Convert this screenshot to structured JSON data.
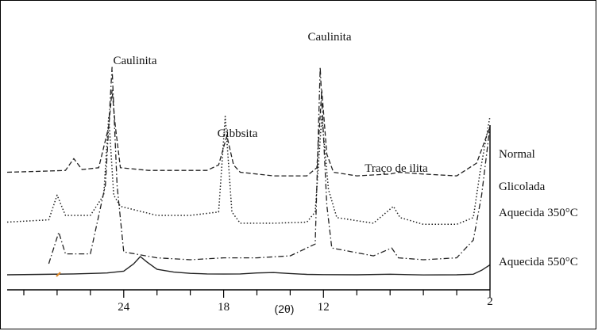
{
  "chart_data": {
    "type": "line",
    "xlabel": "(2θ)",
    "x_reversed": true,
    "xlim": [
      31,
      2
    ],
    "x_ticks": [
      24,
      18,
      12,
      2
    ],
    "x_tick_labels": [
      "24",
      "18",
      "12",
      "2"
    ],
    "series": [
      {
        "name": "Normal",
        "line_style": "dashed",
        "points": [
          [
            31,
            0.1
          ],
          [
            29,
            0.11
          ],
          [
            27.5,
            0.12
          ],
          [
            27,
            0.25
          ],
          [
            26.5,
            0.13
          ],
          [
            25.5,
            0.15
          ],
          [
            24.9,
            0.6
          ],
          [
            24.7,
            1.0
          ],
          [
            24.5,
            0.6
          ],
          [
            24.2,
            0.15
          ],
          [
            22.5,
            0.12
          ],
          [
            21,
            0.12
          ],
          [
            19,
            0.12
          ],
          [
            18.3,
            0.18
          ],
          [
            17.8,
            0.5
          ],
          [
            17.4,
            0.18
          ],
          [
            17,
            0.1
          ],
          [
            15,
            0.06
          ],
          [
            13,
            0.06
          ],
          [
            12.4,
            0.15
          ],
          [
            12.1,
            1.0
          ],
          [
            11.8,
            0.3
          ],
          [
            11.4,
            0.1
          ],
          [
            10,
            0.06
          ],
          [
            8,
            0.08
          ],
          [
            7.5,
            0.1
          ],
          [
            6,
            0.08
          ],
          [
            4,
            0.06
          ],
          [
            2.8,
            0.2
          ],
          [
            2,
            0.6
          ]
        ]
      },
      {
        "name": "Glicolada",
        "line_style": "dotted",
        "points": [
          [
            31,
            0.06
          ],
          [
            28.5,
            0.08
          ],
          [
            28,
            0.3
          ],
          [
            27.5,
            0.12
          ],
          [
            26,
            0.12
          ],
          [
            25.2,
            0.3
          ],
          [
            24.9,
            1.0
          ],
          [
            24.6,
            0.3
          ],
          [
            24.2,
            0.2
          ],
          [
            22,
            0.12
          ],
          [
            20,
            0.12
          ],
          [
            18.3,
            0.15
          ],
          [
            17.9,
            1.0
          ],
          [
            17.5,
            0.15
          ],
          [
            17,
            0.05
          ],
          [
            15,
            0.05
          ],
          [
            13,
            0.06
          ],
          [
            12.5,
            0.15
          ],
          [
            12.1,
            1.0
          ],
          [
            11.7,
            0.35
          ],
          [
            11.2,
            0.1
          ],
          [
            9,
            0.05
          ],
          [
            7.8,
            0.2
          ],
          [
            7.4,
            0.1
          ],
          [
            6,
            0.04
          ],
          [
            4,
            0.04
          ],
          [
            3,
            0.1
          ],
          [
            2.6,
            0.5
          ],
          [
            2,
            1.0
          ]
        ]
      },
      {
        "name": "Aquecida 350°C",
        "line_style": "dashdot",
        "points": [
          [
            28.5,
            0.0
          ],
          [
            27.9,
            0.16
          ],
          [
            27.5,
            0.05
          ],
          [
            26,
            0.05
          ],
          [
            25.1,
            0.4
          ],
          [
            24.7,
            1.0
          ],
          [
            24.4,
            0.4
          ],
          [
            24,
            0.06
          ],
          [
            22,
            0.03
          ],
          [
            20,
            0.02
          ],
          [
            18,
            0.03
          ],
          [
            16,
            0.03
          ],
          [
            14,
            0.04
          ],
          [
            12.5,
            0.1
          ],
          [
            12.2,
            1.0
          ],
          [
            11.8,
            0.3
          ],
          [
            11.5,
            0.08
          ],
          [
            9,
            0.04
          ],
          [
            7.9,
            0.08
          ],
          [
            7.5,
            0.03
          ],
          [
            6,
            0.02
          ],
          [
            4,
            0.03
          ],
          [
            3,
            0.12
          ],
          [
            2.5,
            0.35
          ],
          [
            2,
            0.7
          ]
        ]
      },
      {
        "name": "Aquecida 550°C",
        "line_style": "solid",
        "points": [
          [
            31,
            0.0
          ],
          [
            29,
            0.02
          ],
          [
            27,
            0.05
          ],
          [
            25,
            0.1
          ],
          [
            24,
            0.2
          ],
          [
            23.4,
            0.6
          ],
          [
            23,
            1.0
          ],
          [
            22.6,
            0.7
          ],
          [
            22,
            0.3
          ],
          [
            21,
            0.15
          ],
          [
            20,
            0.08
          ],
          [
            19,
            0.05
          ],
          [
            18,
            0.04
          ],
          [
            17,
            0.05
          ],
          [
            16,
            0.1
          ],
          [
            15,
            0.12
          ],
          [
            14,
            0.07
          ],
          [
            13,
            0.02
          ],
          [
            12,
            0.01
          ],
          [
            10,
            0.0
          ],
          [
            8,
            0.03
          ],
          [
            6,
            -0.01
          ],
          [
            4,
            0.0
          ],
          [
            3,
            0.03
          ],
          [
            2.5,
            0.25
          ],
          [
            2,
            0.55
          ]
        ]
      }
    ],
    "annotations": [
      {
        "text": "Caulinita",
        "near_x": 24.7
      },
      {
        "text": "Caulinita",
        "near_x": 12.1
      },
      {
        "text": "Gibbsita",
        "near_x": 17.8
      },
      {
        "text": "Traço de ilita",
        "near_x": 7.8
      }
    ],
    "legend_placement": "right, end of each trace",
    "colors": {
      "line": "#222222",
      "accent_mark": "#e08a2a"
    }
  }
}
